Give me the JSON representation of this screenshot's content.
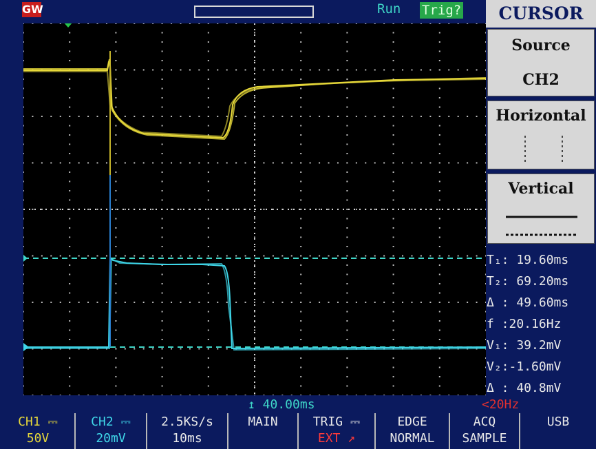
{
  "topbar": {
    "logo": "GW",
    "run_status": "Run",
    "trigger_status": "Trig?"
  },
  "menu": {
    "title": "CURSOR",
    "source_label": "Source",
    "source_value": "CH2",
    "horizontal_label": "Horizontal",
    "vertical_label": "Vertical"
  },
  "readouts": {
    "t1": "T₁: 19.60ms",
    "t2": "T₂: 69.20ms",
    "dt": "Δ : 49.60ms",
    "f": "f :20.16Hz",
    "v1": "V₁: 39.2mV",
    "v2": "V₂:-1.60mV",
    "dv": "Δ : 40.8mV"
  },
  "status": {
    "timebase": "↥ 40.00ms",
    "freq": "<20Hz"
  },
  "bottom": {
    "ch1_label": "CH1 ⎓",
    "ch1_value": "50V",
    "ch2_label": "CH2 ⎓",
    "ch2_value": "20mV",
    "sample_rate": "2.5KS/s",
    "time_div": "10ms",
    "main": "MAIN",
    "trig_label": "TRIG ⎓",
    "trig_source": "EXT ↗",
    "edge_label": "EDGE",
    "edge_mode": "NORMAL",
    "acq_label": "ACQ",
    "acq_mode": "SAMPLE",
    "usb": "USB"
  },
  "colors": {
    "ch1": "#e6d83a",
    "ch2": "#3fd6e8",
    "grid": "#cfcfcf",
    "background": "#000000",
    "frame": "#0b1a5e"
  }
}
